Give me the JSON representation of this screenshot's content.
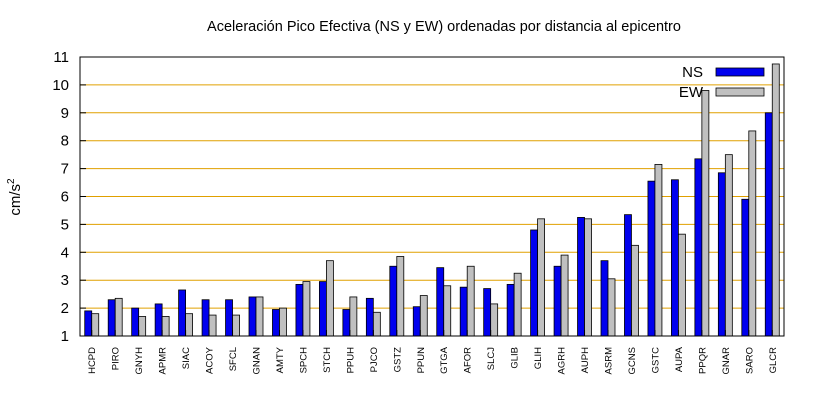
{
  "chart_data": {
    "type": "bar",
    "title": "Aceleración Pico Efectiva (NS y EW) ordenadas por distancia al epicentro",
    "ylabel": "cm/s",
    "ylabel_sup": "2",
    "xlabel": "",
    "ylim": [
      1,
      11
    ],
    "yticks": [
      1,
      2,
      3,
      4,
      5,
      6,
      7,
      8,
      9,
      10,
      11
    ],
    "grid": true,
    "legend_position": "top-right",
    "categories": [
      "HCPD",
      "PIRO",
      "GNYH",
      "APMR",
      "SIAC",
      "ACOY",
      "SFCL",
      "GNAN",
      "AMTY",
      "SPCH",
      "STCH",
      "PPUH",
      "PJCO",
      "GSTZ",
      "PPUN",
      "GTGA",
      "AFOR",
      "SLCJ",
      "GLIB",
      "GLIH",
      "AGRH",
      "AUPH",
      "ASRM",
      "GCNS",
      "GSTC",
      "AUPA",
      "PPQR",
      "GNAR",
      "SARO",
      "GLCR"
    ],
    "series": [
      {
        "name": "NS",
        "color": "#0000ee",
        "values": [
          1.9,
          2.3,
          2.0,
          2.15,
          2.65,
          2.3,
          2.3,
          2.4,
          1.95,
          2.85,
          2.95,
          1.95,
          2.35,
          3.5,
          2.05,
          3.45,
          2.75,
          2.7,
          2.85,
          4.8,
          3.5,
          5.25,
          3.7,
          5.35,
          6.55,
          6.6,
          7.35,
          6.85,
          5.9,
          9.0
        ]
      },
      {
        "name": "EW",
        "color": "#c0c0c0",
        "values": [
          1.8,
          2.35,
          1.7,
          1.7,
          1.8,
          1.75,
          1.75,
          2.4,
          2.0,
          2.95,
          3.7,
          2.4,
          1.85,
          3.85,
          2.45,
          2.8,
          3.5,
          2.15,
          3.25,
          5.2,
          3.9,
          5.2,
          3.05,
          4.25,
          7.15,
          4.65,
          9.8,
          7.5,
          8.35,
          10.75
        ]
      }
    ],
    "grid_color": "#e0a000"
  }
}
